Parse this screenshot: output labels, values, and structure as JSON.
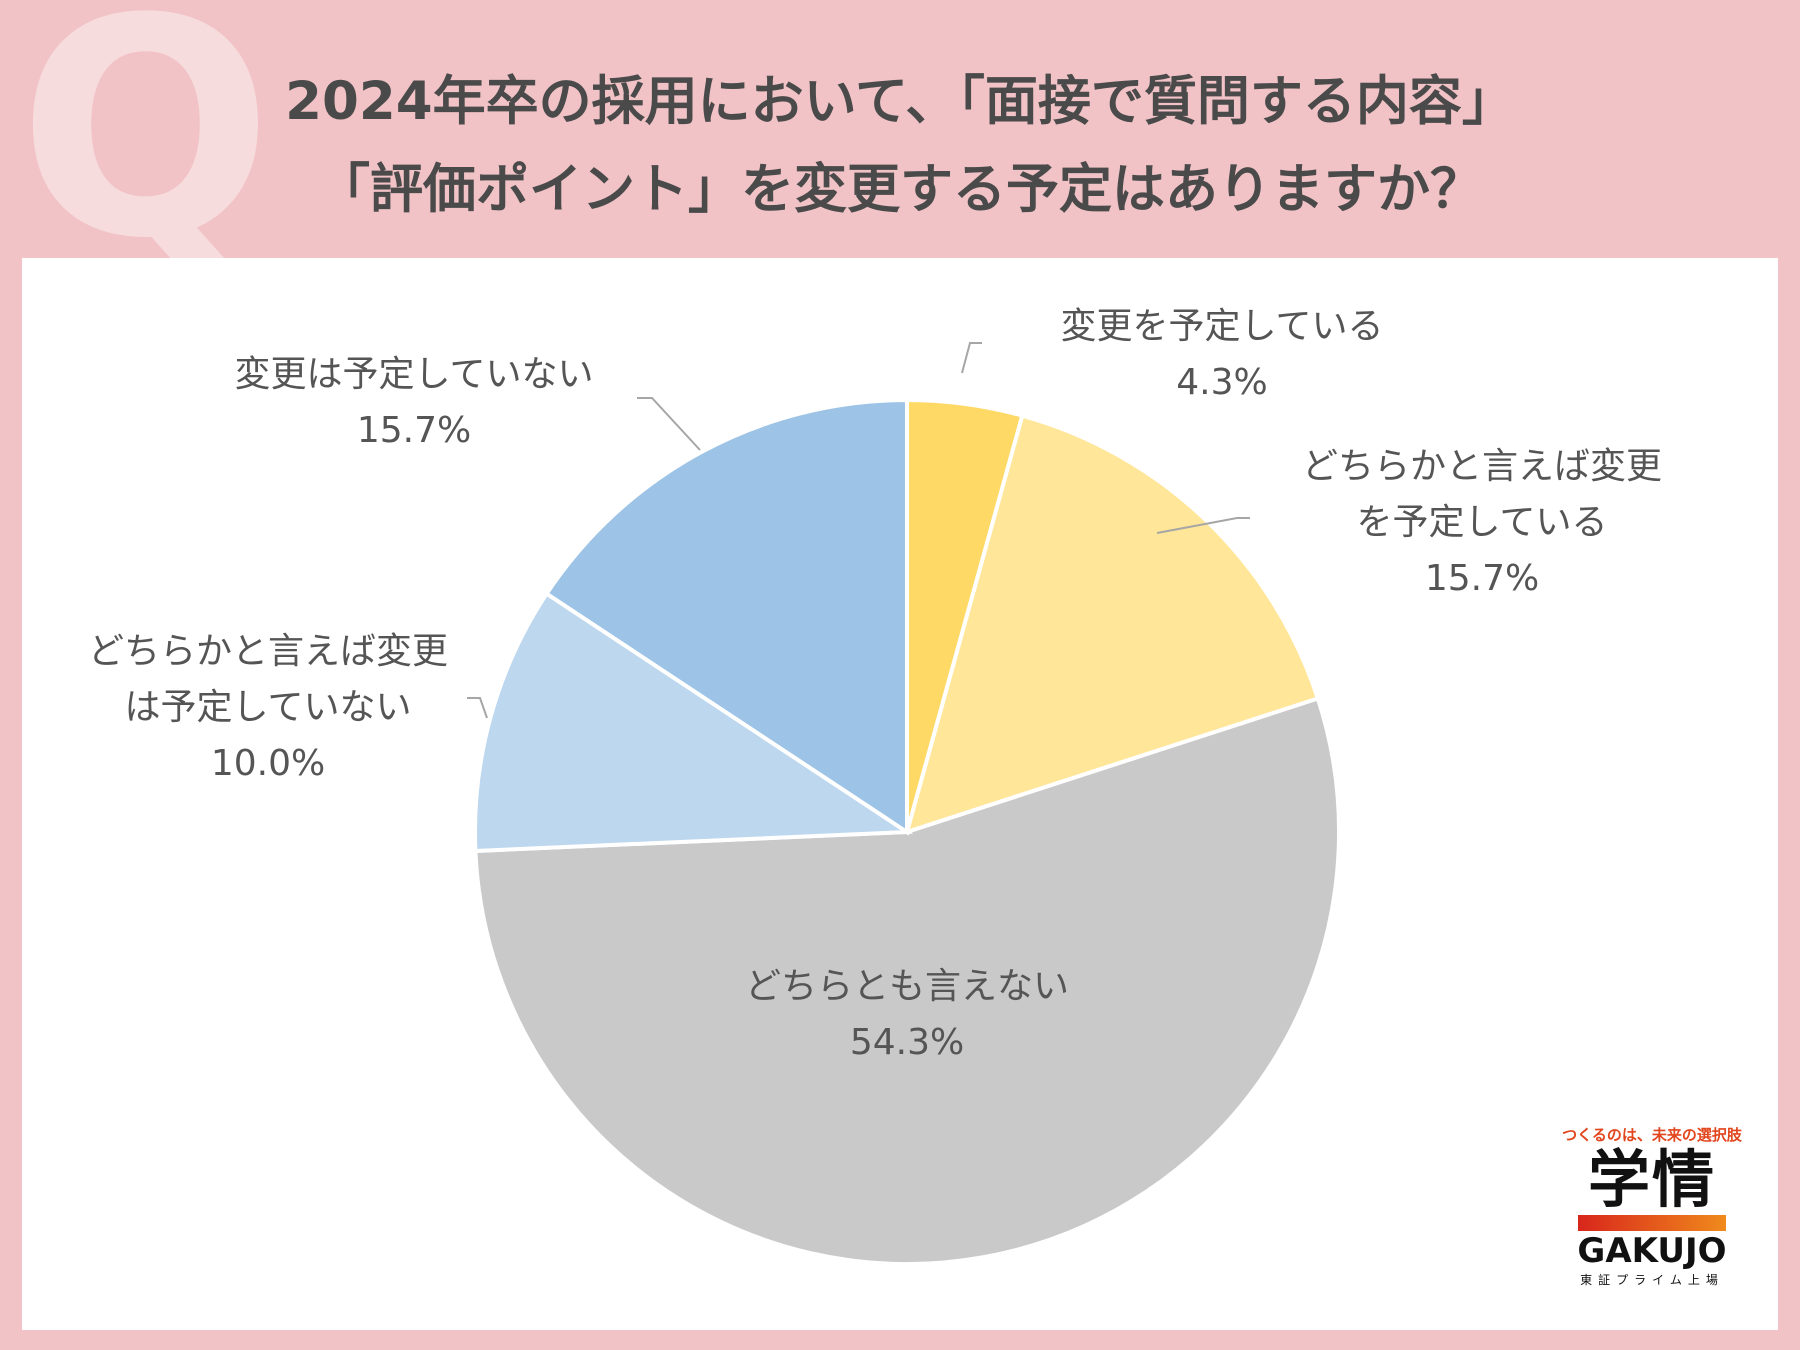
{
  "header": {
    "q_mark": "Q",
    "title_line1": "2024年卒の採用において、「面接で質問する内容」",
    "title_line2": "「評価ポイント」を変更する予定はありますか？"
  },
  "chart_data": {
    "type": "pie",
    "start_angle": "12 o'clock, clockwise",
    "slices": [
      {
        "label_lines": [
          "変更を予定している"
        ],
        "value": 4.3,
        "value_label": "4.3%",
        "color": "#ffd966"
      },
      {
        "label_lines": [
          "どちらかと言えば変更",
          "を予定している"
        ],
        "value": 15.7,
        "value_label": "15.7%",
        "color": "#ffe699"
      },
      {
        "label_lines": [
          "どちらとも言えない"
        ],
        "value": 54.3,
        "value_label": "54.3%",
        "color": "#c9c9c9"
      },
      {
        "label_lines": [
          "どちらかと言えば変更",
          "は予定していない"
        ],
        "value": 10.0,
        "value_label": "10.0%",
        "color": "#bdd7ee"
      },
      {
        "label_lines": [
          "変更は予定していない"
        ],
        "value": 15.7,
        "value_label": "15.7%",
        "color": "#9dc3e6"
      }
    ]
  },
  "logo": {
    "tagline": "つくるのは、未来の選択肢",
    "kanji": "学情",
    "latin": "GAKUJO",
    "sub": "東証プライム上場"
  }
}
